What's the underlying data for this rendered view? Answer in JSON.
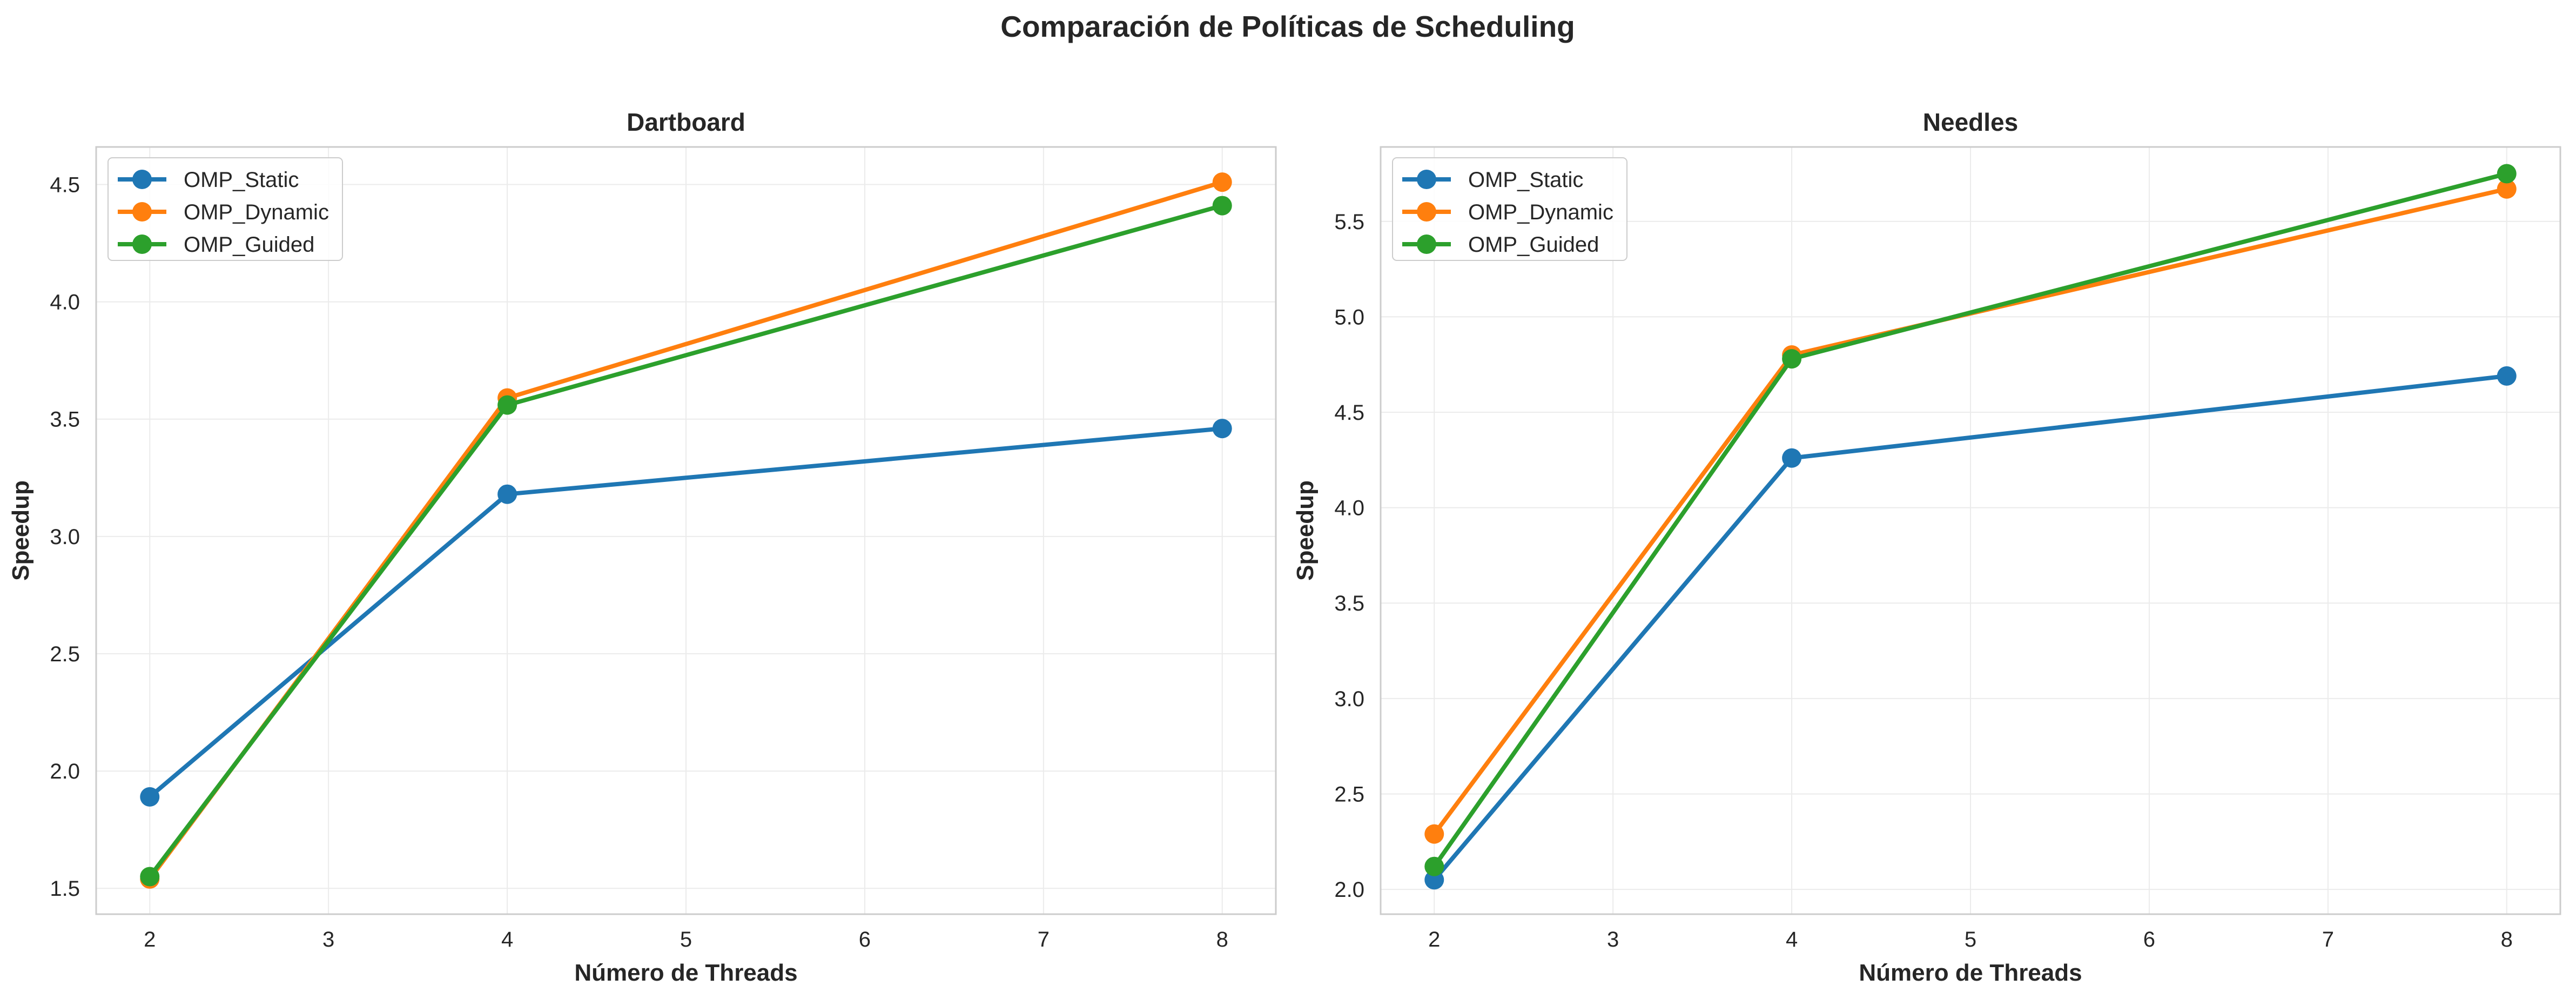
{
  "figure": {
    "title": "Comparación de Políticas de Scheduling"
  },
  "chart_data": [
    {
      "type": "line",
      "title": "Dartboard",
      "xlabel": "Número de Threads",
      "ylabel": "Speedup",
      "x": [
        2,
        4,
        8
      ],
      "xlim": [
        1.7,
        8.3
      ],
      "ylim": [
        1.39,
        4.66
      ],
      "xticks": [
        2,
        3,
        4,
        5,
        6,
        7,
        8
      ],
      "yticks": [
        1.5,
        2.0,
        2.5,
        3.0,
        3.5,
        4.0,
        4.5
      ],
      "grid": true,
      "legend_position": "upper left",
      "series": [
        {
          "name": "OMP_Static",
          "color": "#1f77b4",
          "values": [
            1.89,
            3.18,
            3.46
          ]
        },
        {
          "name": "OMP_Dynamic",
          "color": "#ff7f0e",
          "values": [
            1.54,
            3.59,
            4.51
          ]
        },
        {
          "name": "OMP_Guided",
          "color": "#2ca02c",
          "values": [
            1.55,
            3.56,
            4.41
          ]
        }
      ]
    },
    {
      "type": "line",
      "title": "Needles",
      "xlabel": "Número de Threads",
      "ylabel": "Speedup",
      "x": [
        2,
        4,
        8
      ],
      "xlim": [
        1.7,
        8.3
      ],
      "ylim": [
        1.87,
        5.89
      ],
      "xticks": [
        2,
        3,
        4,
        5,
        6,
        7,
        8
      ],
      "yticks": [
        2.0,
        2.5,
        3.0,
        3.5,
        4.0,
        4.5,
        5.0,
        5.5
      ],
      "grid": true,
      "legend_position": "upper left",
      "series": [
        {
          "name": "OMP_Static",
          "color": "#1f77b4",
          "values": [
            2.05,
            4.26,
            4.69
          ]
        },
        {
          "name": "OMP_Dynamic",
          "color": "#ff7f0e",
          "values": [
            2.29,
            4.8,
            5.67
          ]
        },
        {
          "name": "OMP_Guided",
          "color": "#2ca02c",
          "values": [
            2.12,
            4.78,
            5.75
          ]
        }
      ]
    }
  ]
}
